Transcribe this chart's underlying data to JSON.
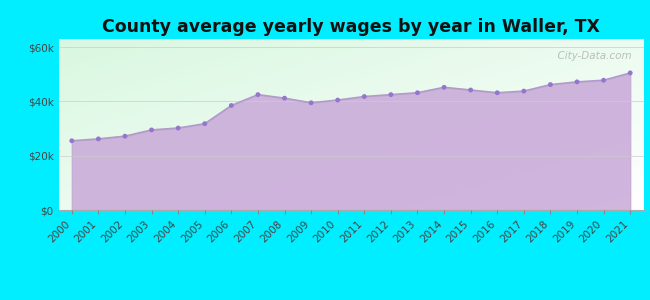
{
  "title": "County average yearly wages by year in Waller, TX",
  "years": [
    2000,
    2001,
    2002,
    2003,
    2004,
    2005,
    2006,
    2007,
    2008,
    2009,
    2010,
    2011,
    2012,
    2013,
    2014,
    2015,
    2016,
    2017,
    2018,
    2019,
    2020,
    2021
  ],
  "wages": [
    25500,
    26200,
    27200,
    29500,
    30200,
    31800,
    38500,
    42500,
    41200,
    39500,
    40500,
    41800,
    42500,
    43200,
    45200,
    44200,
    43200,
    43800,
    46200,
    47200,
    47800,
    50500
  ],
  "line_color": "#b09cc8",
  "fill_color": "#c8a8d8",
  "fill_alpha": 0.85,
  "marker_color": "#9575cd",
  "marker_size": 3.5,
  "bg_outer": "#00eeff",
  "ylim": [
    0,
    63000
  ],
  "yticks": [
    0,
    20000,
    40000,
    60000
  ],
  "ytick_labels": [
    "$0",
    "$20k",
    "$40k",
    "$60k"
  ],
  "watermark": "  City-Data.com",
  "title_fontsize": 12.5,
  "tick_fontsize": 7.5
}
